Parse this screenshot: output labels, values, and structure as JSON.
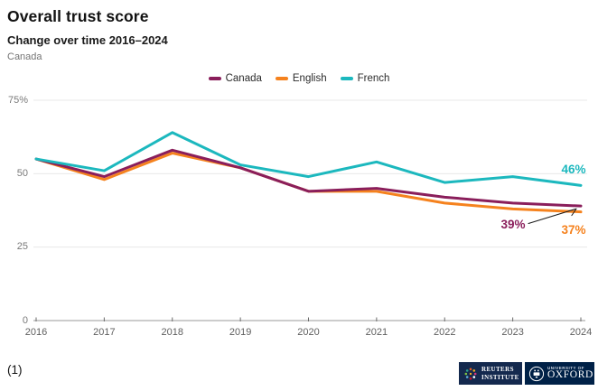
{
  "chart_data": {
    "type": "line",
    "title": "Overall trust score",
    "subtitle": "Change over time 2016–2024",
    "region_label": "Canada",
    "x": [
      2016,
      2017,
      2018,
      2019,
      2020,
      2021,
      2022,
      2023,
      2024
    ],
    "series": [
      {
        "name": "English",
        "color": "#F5821E",
        "values": [
          55,
          48,
          57,
          52,
          44,
          44,
          40,
          38,
          37
        ]
      },
      {
        "name": "Canada",
        "color": "#8A1E5B",
        "values": [
          55,
          49,
          58,
          52,
          44,
          45,
          42,
          40,
          39
        ]
      },
      {
        "name": "French",
        "color": "#1CB8BE",
        "values": [
          55,
          51,
          64,
          53,
          49,
          54,
          47,
          49,
          46
        ]
      }
    ],
    "legend_order": [
      "Canada",
      "English",
      "French"
    ],
    "legend_position": "top-center",
    "grid": "horizontal",
    "ylim": [
      0,
      75
    ],
    "yticks": [
      {
        "value": 75,
        "label": "75%"
      },
      {
        "value": 50,
        "label": "50"
      },
      {
        "value": 25,
        "label": "25"
      },
      {
        "value": 0,
        "label": "0"
      }
    ],
    "annotations": [
      {
        "series": "French",
        "year": 2024,
        "label": "46%",
        "arrow": false
      },
      {
        "series": "Canada",
        "year": 2024,
        "label": "39%",
        "arrow": true
      },
      {
        "series": "English",
        "year": 2024,
        "label": "37%",
        "arrow": false
      }
    ]
  },
  "footer": {
    "note": "(1)",
    "reuters_logo": {
      "line1": "REUTERS",
      "line2": "INSTITUTE"
    },
    "oxford_logo": {
      "line1": "UNIVERSITY OF",
      "line2": "OXFORD"
    }
  }
}
